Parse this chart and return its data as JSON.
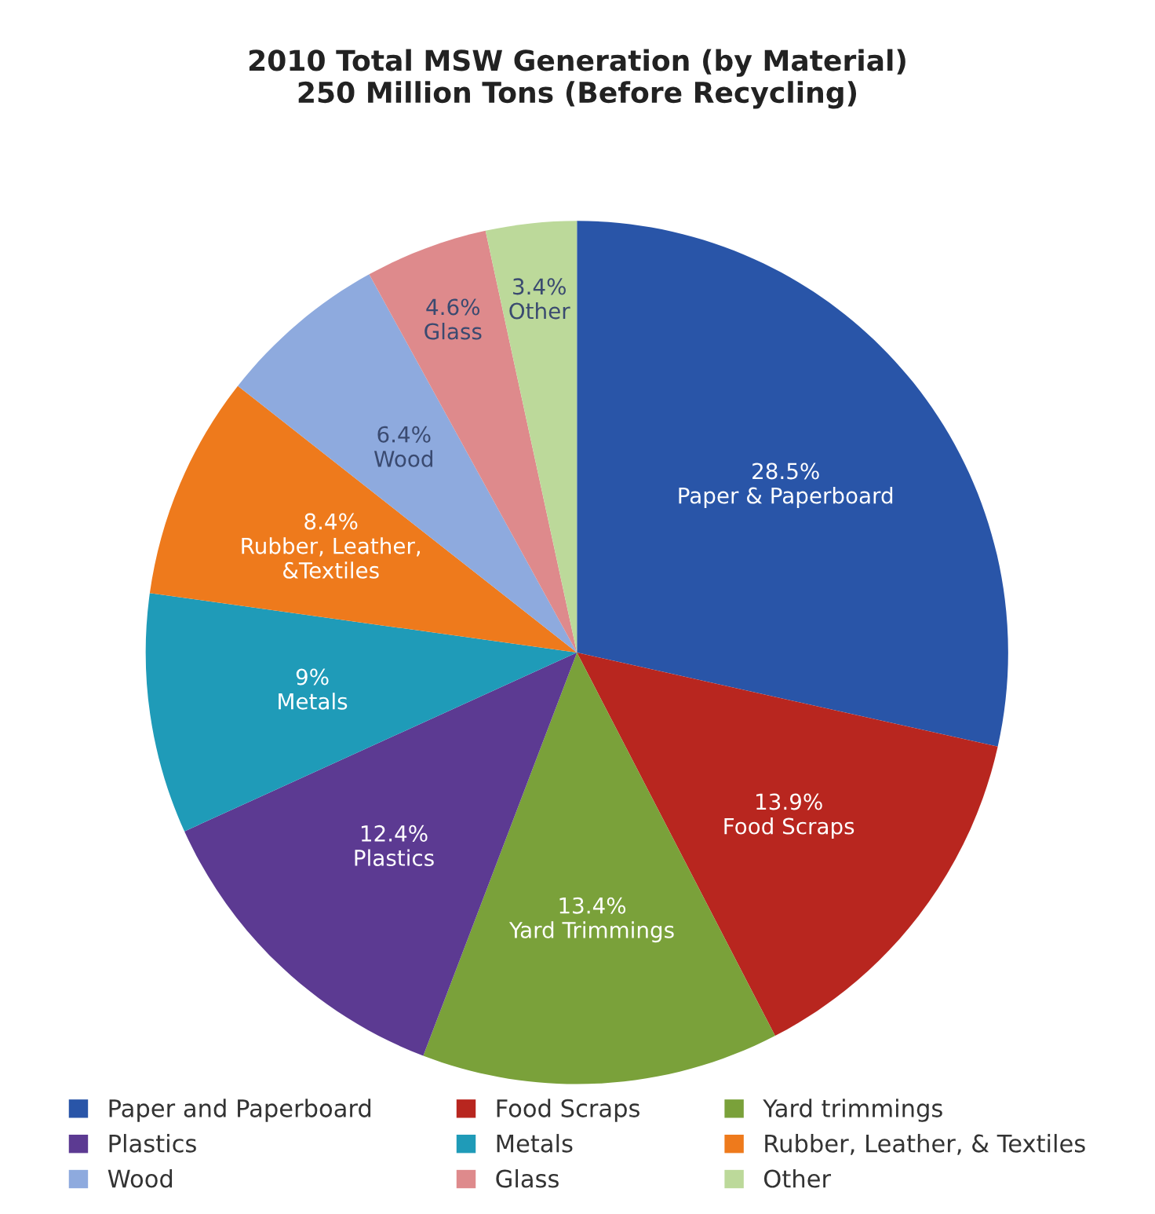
{
  "chart_data": {
    "type": "pie",
    "title": "2010 Total MSW Generation (by Material)\n250 Million Tons (Before Recycling)",
    "categories": [
      "Paper and Paperboard",
      "Food Scraps",
      "Yard trimmings",
      "Plastics",
      "Metals",
      "Rubber, Leather, & Textiles",
      "Wood",
      "Glass",
      "Other"
    ],
    "values": [
      28.5,
      13.9,
      13.4,
      12.4,
      9,
      8.4,
      6.4,
      4.6,
      3.4
    ],
    "colors": [
      "#2955a8",
      "#b8261f",
      "#7aa13a",
      "#5c3a92",
      "#1f9bb8",
      "#ee7a1c",
      "#8eaade",
      "#de8a8c",
      "#bcd99a"
    ],
    "value_labels": [
      "28.5%\nPaper & Paperboard",
      "13.9%\nFood Scraps",
      "13.4%\nYard Trimmings",
      "12.4%\nPlastics",
      "9%\nMetals",
      "8.4%\nRubber, Leather,\n&Textiles",
      "6.4%\nWood",
      "4.6%\nGlass",
      "3.4%\nOther"
    ],
    "legend": "bottom"
  }
}
